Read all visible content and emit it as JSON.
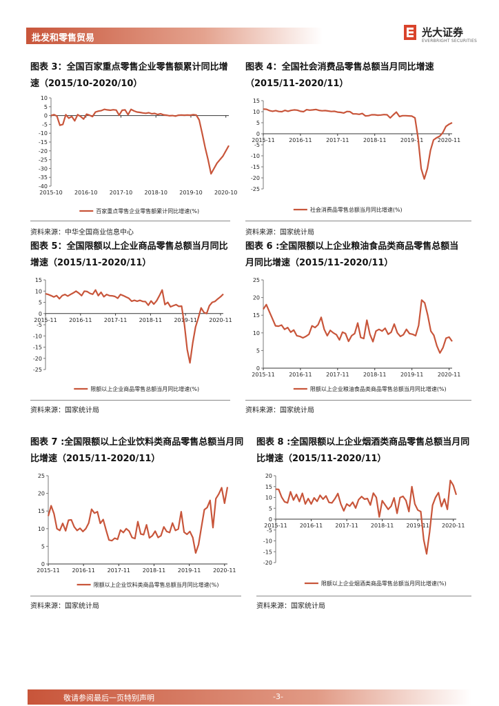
{
  "header": {
    "section": "批发和零售贸易",
    "logo_cn": "光大证券",
    "logo_en": "EVERBRIGHT SECURITIES"
  },
  "footer": {
    "disclaimer": "敬请参阅最后一页特别声明",
    "page": "-3-"
  },
  "colors": {
    "line": "#c8553a",
    "brand": "#c8553a"
  },
  "charts": [
    {
      "caption_line1": "图表 3：全国百家重点零售企业零售额累计同比增",
      "caption_line2": "速（2015/10-2020/10）",
      "source": "资料来源：中华全国商业信息中心"
    },
    {
      "caption_line1": "图表 4：全国社会消费品零售总额当月同比增速",
      "caption_line2": "（2015/11-2020/11）",
      "source": "资料来源：国家统计局"
    },
    {
      "caption_line1": "图表 5：全国限额以上企业商品零售总额当月同比",
      "caption_line2": "增速（2015/11-2020/11）",
      "source": "资料来源：国家统计局"
    },
    {
      "caption_line1": "图表 6 :全国限额以上企业粮油食品类商品零售总额当",
      "caption_line2": "月同比增速（2015/11-2020/11）",
      "source": "资料来源：国家统计局"
    },
    {
      "caption_line1": "图表 7 :全国限额以上企业饮料类商品零售总额当月同",
      "caption_line2": "比增速（2015/11-2020/11）",
      "source": "资料来源：国家统计局"
    },
    {
      "caption_line1": "图表 8 :全国限额以上企业烟酒类商品零售总额当月同",
      "caption_line2": "比增速（2015/11-2020/11）",
      "source": "资料来源：国家统计局"
    }
  ],
  "chart_data": [
    {
      "type": "line",
      "ylim": [
        -40,
        10
      ],
      "yticks": [
        10,
        5,
        0,
        -5,
        -10,
        -15,
        -20,
        -25,
        -30,
        -35,
        -40
      ],
      "xticks": [
        "2015-10",
        "2016-10",
        "2017-10",
        "2018-10",
        "2019-10",
        "2020-10"
      ],
      "legend": "百家重点零售企业零售额累计同比增速(%)",
      "series": [
        {
          "values": [
            0,
            0.5,
            -0.3,
            -5.5,
            -5,
            0.5,
            -1.5,
            -0.5,
            -3,
            0.5,
            -0.5,
            -2,
            0.8,
            0.2,
            -0.6,
            2,
            2.5,
            2.8,
            3.5,
            3.2,
            3,
            3.3,
            3.1,
            0.2,
            3,
            3.2,
            0.5,
            3.5,
            2.6,
            2,
            1.8,
            1.5,
            1.3,
            1.6,
            1,
            1.2,
            0.6,
            1,
            0.4,
            0.2,
            -0.1,
            0,
            -0.3,
            0.2,
            0.3,
            0.2,
            0.3,
            0.2,
            0.5,
            0.3,
            -2.5,
            -10,
            -18,
            -25,
            -33,
            -30,
            -27,
            -25,
            -23,
            -20,
            -17
          ]
        }
      ]
    },
    {
      "type": "line",
      "ylim": [
        -25,
        15
      ],
      "yticks": [
        15,
        10,
        5,
        0,
        -5,
        -10,
        -15,
        -20,
        -25
      ],
      "xticks": [
        "2015-11",
        "2016-11",
        "2017-11",
        "2018-11",
        "2019-11",
        "2020-11"
      ],
      "legend": "社会消费品零售总额当月同比增速(%)",
      "series": [
        {
          "values": [
            11.2,
            11.1,
            10.5,
            10.2,
            10.5,
            10.1,
            10,
            10.6,
            10.2,
            10.6,
            10.8,
            10.7,
            10.2,
            10,
            10.9,
            10.7,
            10.8,
            11,
            10.6,
            10.4,
            10.5,
            10.3,
            10.1,
            10.2,
            9.8,
            9.7,
            9.4,
            10.1,
            10,
            9,
            9,
            8.8,
            9.2,
            8.1,
            8.2,
            8.6,
            8.6,
            8.4,
            8.5,
            8.7,
            8.6,
            7.2,
            8.6,
            9.8,
            7.8,
            8.2,
            8.2,
            8.1,
            8,
            7.2,
            -2,
            -15.8,
            -20.5,
            -15.8,
            -7.5,
            -2.8,
            -1.8,
            -1.1,
            0.5,
            3.3,
            4.3,
            5
          ]
        }
      ]
    },
    {
      "type": "line",
      "ylim": [
        -25,
        15
      ],
      "yticks": [
        15,
        10,
        5,
        0,
        -5,
        -10,
        -15,
        -20,
        -25
      ],
      "xticks": [
        "2015-11",
        "2016-11",
        "2017-11",
        "2018-11",
        "2019-11",
        "2020-11"
      ],
      "legend": "限额以上企业商品零售总额当月同比增速(%)",
      "series": [
        {
          "values": [
            8.8,
            8.5,
            8,
            7.4,
            8,
            6.6,
            8,
            8.5,
            7.8,
            8.5,
            9.2,
            10,
            9.1,
            8,
            10,
            9.8,
            9,
            8.6,
            10.5,
            8,
            9.5,
            7.5,
            8.5,
            8,
            7.9,
            7.6,
            6.8,
            8.5,
            8,
            7.4,
            6.8,
            5.5,
            5.9,
            5.5,
            5.9,
            5.4,
            5.3,
            3.7,
            5.6,
            4.2,
            5.7,
            8,
            10.5,
            4,
            5,
            3,
            3.5,
            4,
            3.2,
            3.3,
            -5,
            -16,
            -22,
            -13,
            -6,
            -2,
            2.5,
            0.5,
            0,
            3.5,
            5,
            5.4,
            6.5,
            7.5,
            8.7
          ]
        }
      ]
    },
    {
      "type": "line",
      "ylim": [
        0,
        25
      ],
      "yticks": [
        25,
        20,
        15,
        10,
        5,
        0
      ],
      "xticks": [
        "2015-11",
        "2016-11",
        "2017-11",
        "2018-11",
        "2019-11",
        "2020-11"
      ],
      "legend": "限额以上企业粮油食品类商品零售总额当月同比增速(%)",
      "series": [
        {
          "values": [
            16.7,
            18,
            16,
            14,
            12,
            11.9,
            12.2,
            11,
            11.5,
            10.2,
            10.8,
            9.2,
            9,
            8.6,
            9,
            9.6,
            12,
            11.5,
            12.3,
            14.4,
            11,
            9.2,
            10.7,
            10,
            9.5,
            8,
            10.2,
            9.8,
            7.6,
            9.2,
            9.8,
            12.8,
            8.7,
            8.4,
            13.6,
            9.6,
            7.5,
            10.5,
            11,
            10.5,
            11.3,
            9.6,
            10.2,
            12.5,
            10,
            9,
            9.5,
            11,
            9.8,
            9.6,
            9.2,
            12.1,
            19.3,
            18.5,
            15,
            10.5,
            9.3,
            6.3,
            4.3,
            5.8,
            8.5,
            8.8,
            7.6
          ]
        }
      ]
    },
    {
      "type": "line",
      "ylim": [
        0,
        25
      ],
      "yticks": [
        25,
        20,
        15,
        10,
        5,
        0
      ],
      "xticks": [
        "2015-11",
        "2016-11",
        "2017-11",
        "2018-11",
        "2019-11",
        "2020-11"
      ],
      "legend": "限额以上企业饮料类商品零售总额当月同比增速(%)",
      "series": [
        {
          "values": [
            13.6,
            16.5,
            14.2,
            10,
            9.5,
            11.5,
            9.4,
            12.4,
            12.5,
            10.5,
            9.5,
            10.1,
            9.2,
            10,
            11.6,
            15.5,
            14.4,
            14.8,
            11.5,
            12.6,
            9.6,
            6.8,
            6.6,
            7.3,
            7,
            9.6,
            8.9,
            10,
            9.3,
            7.5,
            7.2,
            12,
            8.5,
            8.3,
            11.1,
            7.4,
            8,
            9.3,
            7.5,
            8,
            10.5,
            9.2,
            8.9,
            11.6,
            9.5,
            9.9,
            14.8,
            9,
            8.4,
            9.2,
            7.5,
            3.1,
            5.5,
            10.5,
            15.4,
            16,
            18,
            10.3,
            18.5,
            19.8,
            21.6,
            17.2,
            21.8
          ]
        }
      ]
    },
    {
      "type": "line",
      "ylim": [
        -20,
        20
      ],
      "yticks": [
        20,
        15,
        10,
        5,
        0,
        -5,
        -10,
        -15,
        -20
      ],
      "xticks": [
        "2015-11",
        "2016-11",
        "2017-11",
        "2018-11",
        "2019-11",
        "2020-11"
      ],
      "legend": "限额以上企业烟酒类商品零售总额当月同比增速(%)",
      "series": [
        {
          "values": [
            13.8,
            13.7,
            10.2,
            8,
            7.5,
            12.6,
            8.8,
            11.4,
            8.1,
            11.9,
            7,
            9.5,
            7,
            9.8,
            8.2,
            11,
            9.2,
            10.7,
            7.7,
            7.5,
            9.4,
            11.8,
            7,
            3.8,
            7,
            6,
            7.8,
            5.1,
            9,
            10.4,
            9.2,
            9.5,
            6.5,
            12,
            10,
            1,
            8.5,
            6.5,
            4.5,
            6,
            9.8,
            2.7,
            9.9,
            10.5,
            8.6,
            3.5,
            15,
            7,
            4.2,
            3.5,
            -9.5,
            -16,
            -6,
            6.4,
            10,
            12.2,
            5.8,
            9.3,
            4.5,
            17.8,
            15.6,
            11.2
          ]
        }
      ]
    }
  ]
}
